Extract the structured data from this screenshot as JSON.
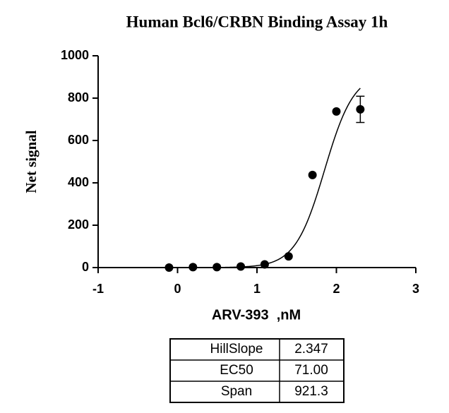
{
  "chart_data": {
    "type": "scatter",
    "title": "Human Bcl6/CRBN Binding Assay 1h",
    "x_label": "ARV-393  ,nM",
    "y_label": "Net signal",
    "x": [
      -0.107,
      0.194,
      0.495,
      0.796,
      1.097,
      1.398,
      1.699,
      2.0,
      2.301
    ],
    "series": [
      {
        "values": [
          0,
          2,
          2,
          5,
          15,
          53,
          437,
          737,
          747
        ],
        "errors": [
          null,
          null,
          null,
          null,
          null,
          null,
          null,
          null,
          62
        ],
        "color": "#000000"
      }
    ],
    "xlim": [
      -1,
      3
    ],
    "ylim": [
      0,
      1000
    ],
    "xticks": [
      -1,
      0,
      1,
      2,
      3
    ],
    "yticks": [
      0,
      200,
      400,
      600,
      800,
      1000
    ]
  },
  "fit_table": {
    "rows": [
      [
        "HillSlope",
        "2.347"
      ],
      [
        "EC50",
        "71.00"
      ],
      [
        "Span",
        "921.3"
      ]
    ]
  }
}
